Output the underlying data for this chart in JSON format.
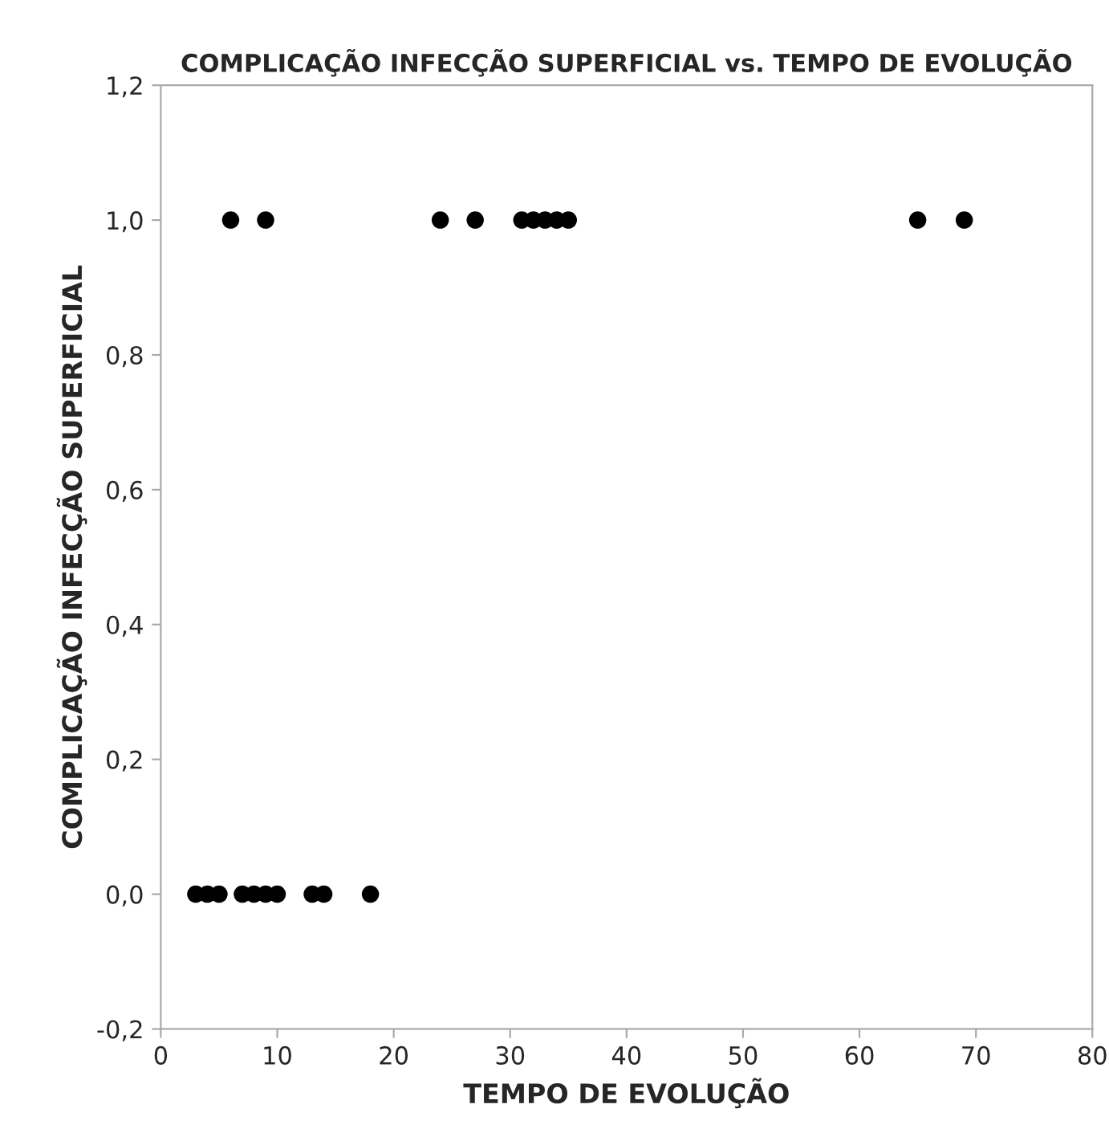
{
  "chart_data": {
    "type": "scatter",
    "title": "COMPLICAÇÃO INFECÇÃO SUPERFICIAL vs. TEMPO DE EVOLUÇÃO",
    "xlabel": "TEMPO DE EVOLUÇÃO",
    "ylabel": "COMPLICAÇÃO INFECÇÃO SUPERFICIAL",
    "series": [
      {
        "color": "#000000",
        "x": [
          6,
          9,
          24,
          27,
          31,
          32,
          33,
          34,
          35,
          65,
          69,
          3,
          4,
          5,
          7,
          8,
          9,
          10,
          13,
          14,
          18
        ],
        "values": [
          1,
          1,
          1,
          1,
          1,
          1,
          1,
          1,
          1,
          1,
          1,
          0,
          0,
          0,
          0,
          0,
          0,
          0,
          0,
          0,
          0
        ]
      }
    ],
    "xlim": [
      0,
      80
    ],
    "xticks": [
      0,
      10,
      20,
      30,
      40,
      50,
      60,
      70,
      80
    ],
    "ylim": [
      -0.2,
      1.2
    ],
    "yticks": [
      {
        "value": -0.2,
        "label": "-0,2"
      },
      {
        "value": 0,
        "label": "0,0"
      },
      {
        "value": 0.2,
        "label": "0,2"
      },
      {
        "value": 0.4,
        "label": "0,4"
      },
      {
        "value": 0.6,
        "label": "0,6"
      },
      {
        "value": 0.8,
        "label": "0,8"
      },
      {
        "value": 1.0,
        "label": "1,0"
      },
      {
        "value": 1.2,
        "label": "1,2"
      }
    ],
    "marker": "circle",
    "grid": false
  }
}
